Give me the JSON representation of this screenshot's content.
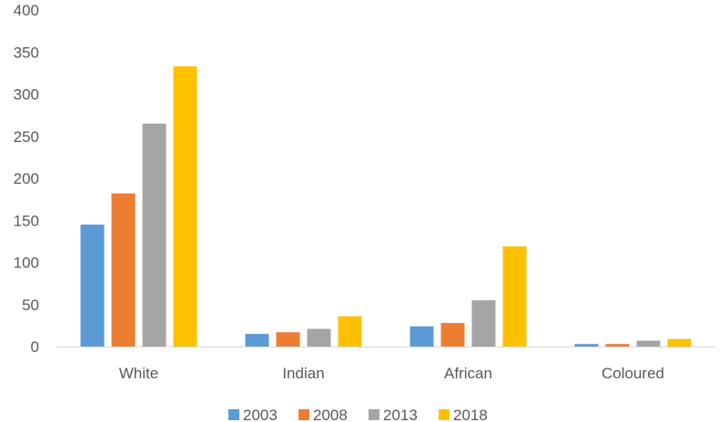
{
  "chart_data": {
    "type": "bar",
    "categories": [
      "White",
      "Indian",
      "African",
      "Coloured"
    ],
    "series": [
      {
        "name": "2003",
        "color": "#5B9BD5",
        "values": [
          145,
          15,
          24,
          3
        ]
      },
      {
        "name": "2008",
        "color": "#ED7D31",
        "values": [
          182,
          17,
          28,
          3
        ]
      },
      {
        "name": "2013",
        "color": "#A5A5A5",
        "values": [
          265,
          21,
          55,
          7
        ]
      },
      {
        "name": "2018",
        "color": "#FFC000",
        "values": [
          333,
          36,
          119,
          9
        ]
      }
    ],
    "ylim": [
      0,
      400
    ],
    "yticks": [
      0,
      50,
      100,
      150,
      200,
      250,
      300,
      350,
      400
    ],
    "grid": false,
    "legend": "bottom"
  }
}
